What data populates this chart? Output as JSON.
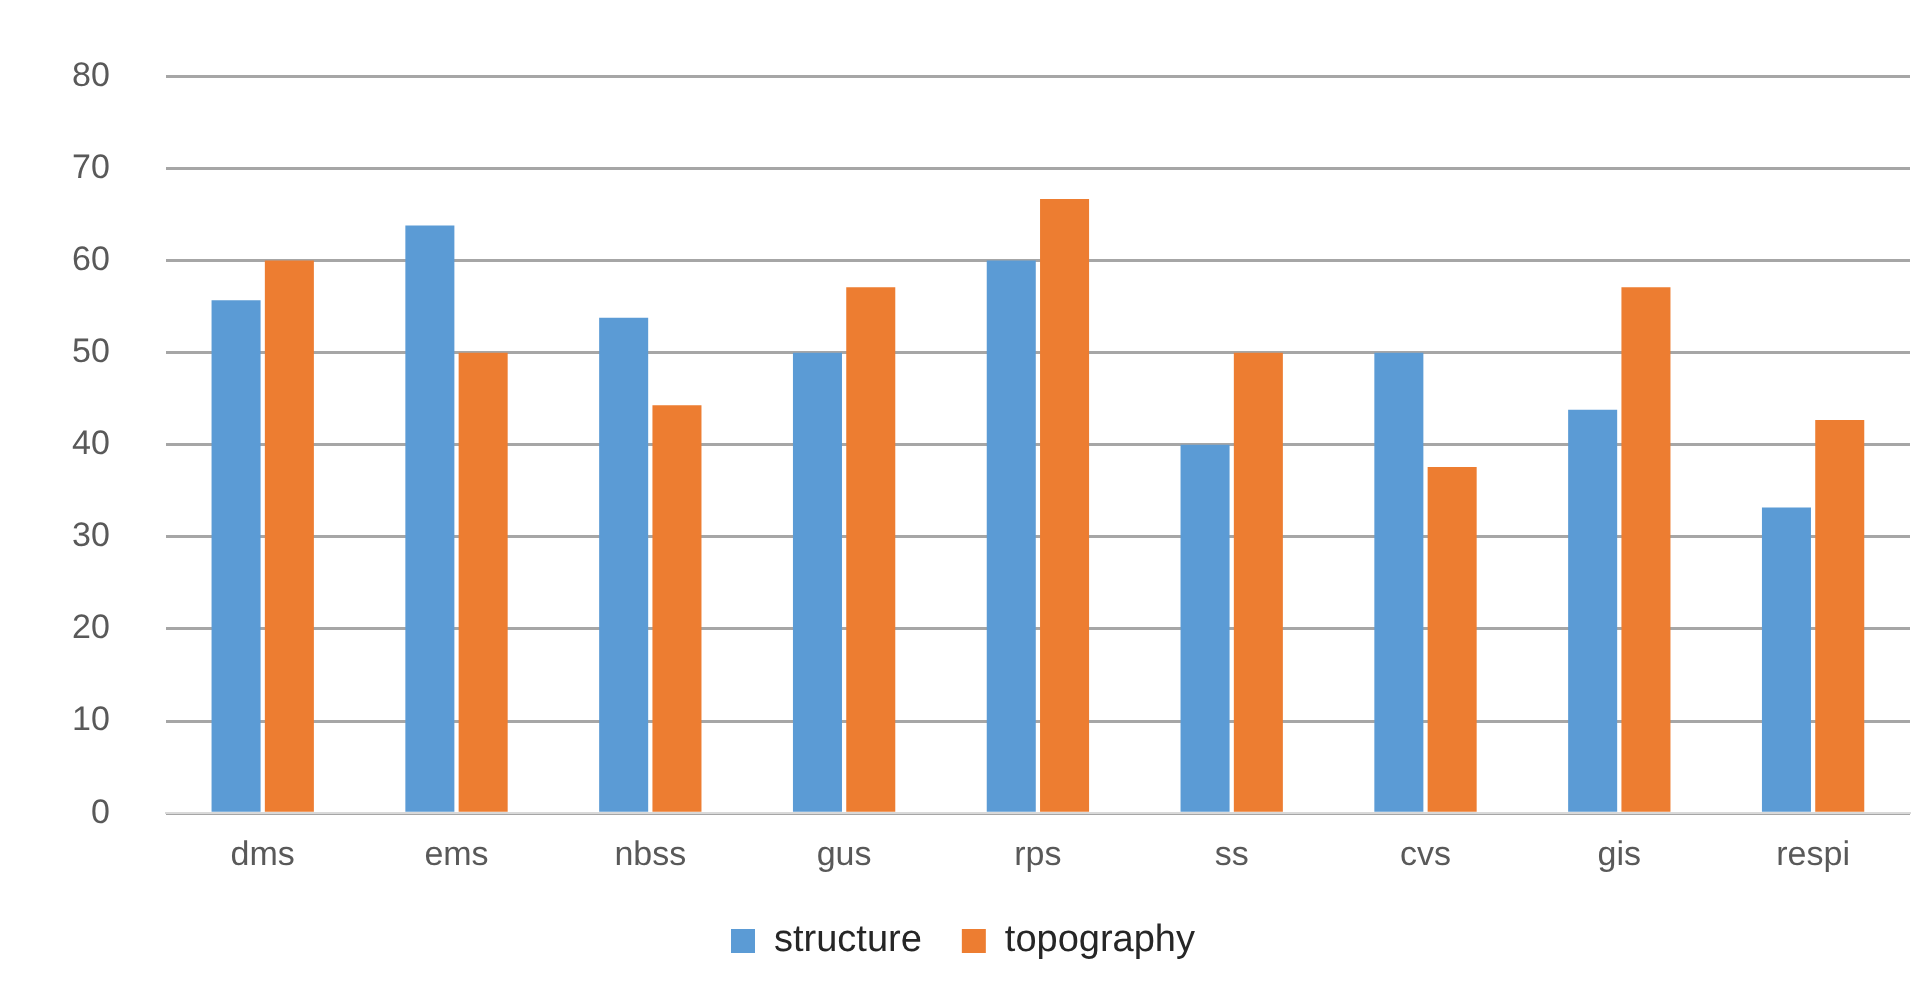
{
  "chart_data": {
    "type": "bar",
    "categories": [
      "dms",
      "ems",
      "nbss",
      "gus",
      "rps",
      "ss",
      "cvs",
      "gis",
      "respi"
    ],
    "series": [
      {
        "name": "structure",
        "color": "#5b9bd5",
        "values": [
          55.7,
          63.8,
          53.8,
          50,
          60,
          40,
          50,
          43.8,
          33.2
        ]
      },
      {
        "name": "topography",
        "color": "#ed7d31",
        "values": [
          60,
          50,
          44.3,
          57.1,
          66.7,
          50,
          37.6,
          57.1,
          42.7
        ]
      }
    ],
    "ylim": [
      0,
      80
    ],
    "yticks": [
      0,
      10,
      20,
      30,
      40,
      50,
      60,
      70,
      80
    ],
    "grid": "y",
    "legend": "bottom"
  }
}
